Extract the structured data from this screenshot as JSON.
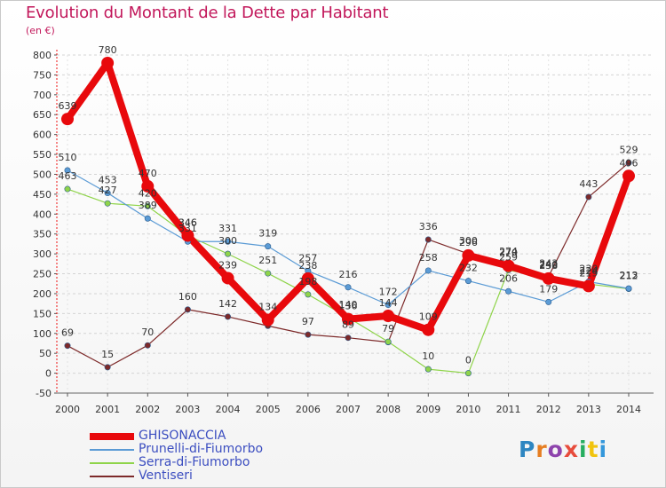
{
  "header": {
    "title": "Evolution du Montant de la Dette par Habitant",
    "unit": "(en €)"
  },
  "logo": {
    "text": "Proxiti",
    "colors": [
      "#2e86c1",
      "#e67e22",
      "#8e44ad",
      "#e74c3c",
      "#27ae60",
      "#f1c40f",
      "#3498db"
    ]
  },
  "chart_data": {
    "type": "line",
    "title": "Evolution du Montant de la Dette par Habitant",
    "ylabel": "(en €)",
    "xlabel": "",
    "x": [
      "2000",
      "2001",
      "2002",
      "2003",
      "2004",
      "2005",
      "2006",
      "2007",
      "2008",
      "2009",
      "2010",
      "2011",
      "2012",
      "2013",
      "2014"
    ],
    "ylim": [
      -50,
      800
    ],
    "yticks": [
      -50,
      0,
      50,
      100,
      150,
      200,
      250,
      300,
      350,
      400,
      450,
      500,
      550,
      600,
      650,
      700,
      750,
      800
    ],
    "grid": "horizontal-dashed",
    "legend": "bottom-left",
    "series": [
      {
        "name": "GHISONACCIA",
        "color": "#e8090c",
        "values": [
          639,
          780,
          470,
          346,
          239,
          134,
          238,
          136,
          144,
          109,
          296,
          270,
          238,
          219,
          496
        ],
        "labels": [
          "639",
          "780",
          "470",
          "346",
          "239",
          "134",
          "238",
          "136",
          "144",
          "109",
          "296",
          "270",
          "238",
          "219",
          "496"
        ]
      },
      {
        "name": "Prunelli-di-Fiumorbo",
        "color": "#5b9bd5",
        "values": [
          510,
          453,
          389,
          331,
          331,
          319,
          257,
          216,
          172,
          258,
          232,
          206,
          179,
          230,
          213
        ],
        "labels": [
          "510",
          "453",
          "389",
          "331",
          "331",
          "319",
          "257",
          "216",
          "172",
          "258",
          "232",
          "206",
          "179",
          "230",
          "213"
        ]
      },
      {
        "name": "Serra-di-Fiumorbo",
        "color": "#8fd44a",
        "values": [
          463,
          427,
          420,
          346,
          300,
          251,
          198,
          140,
          79,
          10,
          0,
          259,
          240,
          224,
          212
        ],
        "labels": [
          "463",
          "427",
          "420",
          "346",
          "300",
          "251",
          "198",
          "140",
          "79",
          "10",
          "0",
          "259",
          "240",
          "224",
          "212"
        ]
      },
      {
        "name": "Ventiseri",
        "color": "#7d2a2a",
        "values": [
          69,
          15,
          70,
          160,
          142,
          119,
          97,
          89,
          78,
          336,
          300,
          274,
          243,
          443,
          529
        ],
        "labels": [
          "69",
          "15",
          "70",
          "160",
          "142",
          "",
          "97",
          "89",
          "",
          "336",
          "300",
          "274",
          "243",
          "443",
          "529"
        ]
      }
    ]
  }
}
